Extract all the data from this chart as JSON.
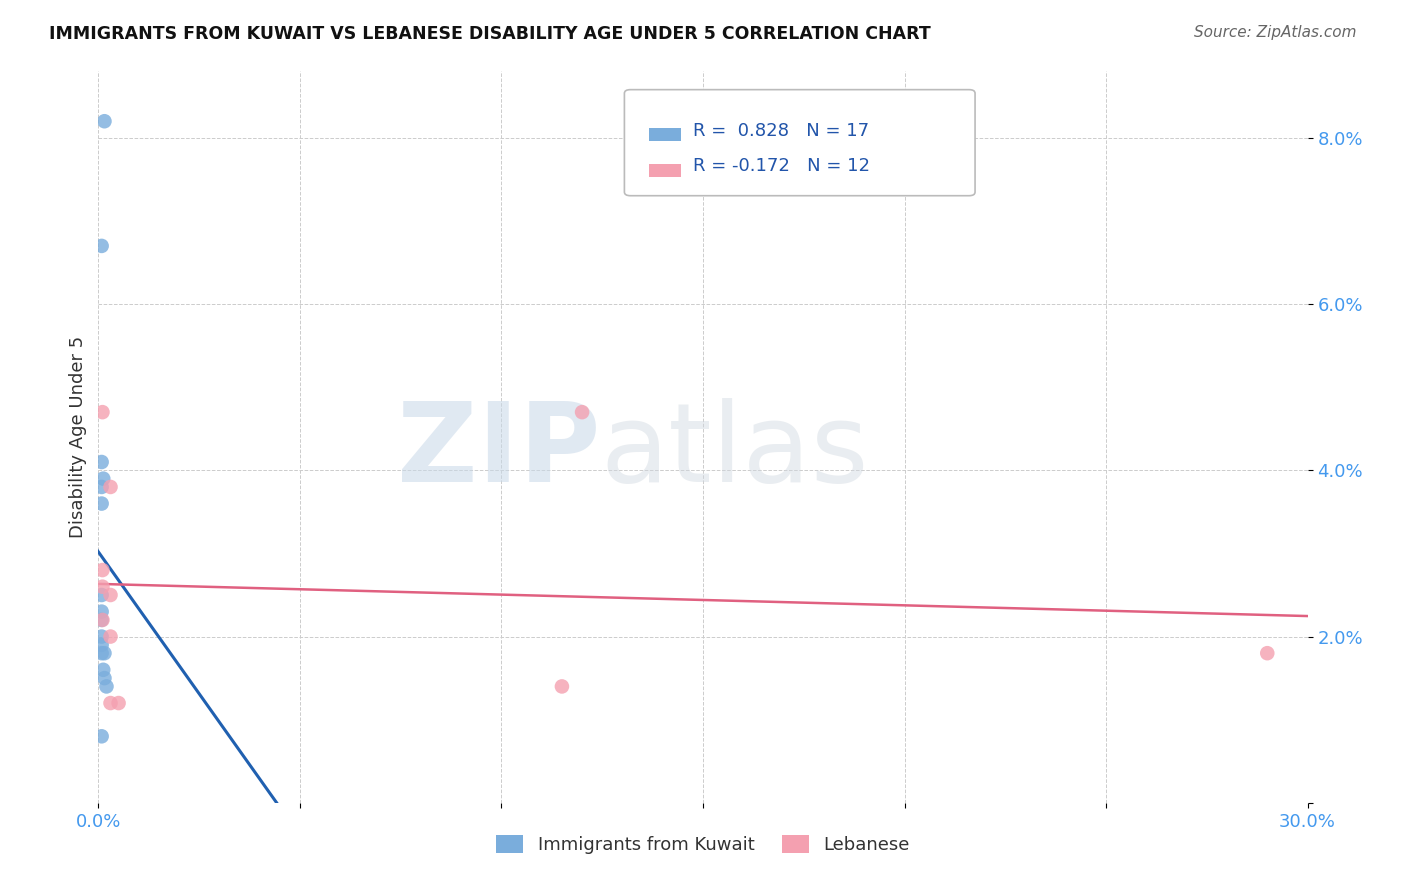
{
  "title": "IMMIGRANTS FROM KUWAIT VS LEBANESE DISABILITY AGE UNDER 5 CORRELATION CHART",
  "source": "Source: ZipAtlas.com",
  "ylabel": "Disability Age Under 5",
  "xlim": [
    0.0,
    0.3
  ],
  "ylim": [
    0.0,
    0.088
  ],
  "xticks": [
    0.0,
    0.05,
    0.1,
    0.15,
    0.2,
    0.25,
    0.3
  ],
  "xticklabels": [
    "0.0%",
    "",
    "",
    "",
    "",
    "",
    "30.0%"
  ],
  "yticks": [
    0.0,
    0.02,
    0.04,
    0.06,
    0.08
  ],
  "yticklabels": [
    "",
    "2.0%",
    "4.0%",
    "6.0%",
    "8.0%"
  ],
  "kuwait_x": [
    0.0015,
    0.0008,
    0.0008,
    0.0012,
    0.0008,
    0.0008,
    0.0008,
    0.0008,
    0.0008,
    0.0008,
    0.0008,
    0.0008,
    0.0015,
    0.0012,
    0.0015,
    0.002,
    0.0008
  ],
  "kuwait_y": [
    0.082,
    0.067,
    0.041,
    0.039,
    0.038,
    0.036,
    0.025,
    0.023,
    0.022,
    0.02,
    0.019,
    0.018,
    0.018,
    0.016,
    0.015,
    0.014,
    0.008
  ],
  "lebanese_x": [
    0.001,
    0.001,
    0.12,
    0.001,
    0.003,
    0.003,
    0.001,
    0.003,
    0.005,
    0.115,
    0.29,
    0.003
  ],
  "lebanese_y": [
    0.047,
    0.028,
    0.047,
    0.026,
    0.038,
    0.025,
    0.022,
    0.02,
    0.012,
    0.014,
    0.018,
    0.012
  ],
  "kuwait_R": 0.828,
  "kuwait_N": 17,
  "lebanese_R": -0.172,
  "lebanese_N": 12,
  "kuwait_color": "#7aaddc",
  "lebanese_color": "#f4a0b0",
  "kuwait_line_color": "#2060b0",
  "lebanese_line_color": "#e06080",
  "legend_label_kuwait": "Immigrants from Kuwait",
  "legend_label_lebanese": "Lebanese",
  "watermark_zip": "ZIP",
  "watermark_atlas": "atlas",
  "background_color": "#ffffff",
  "grid_color": "#cccccc"
}
